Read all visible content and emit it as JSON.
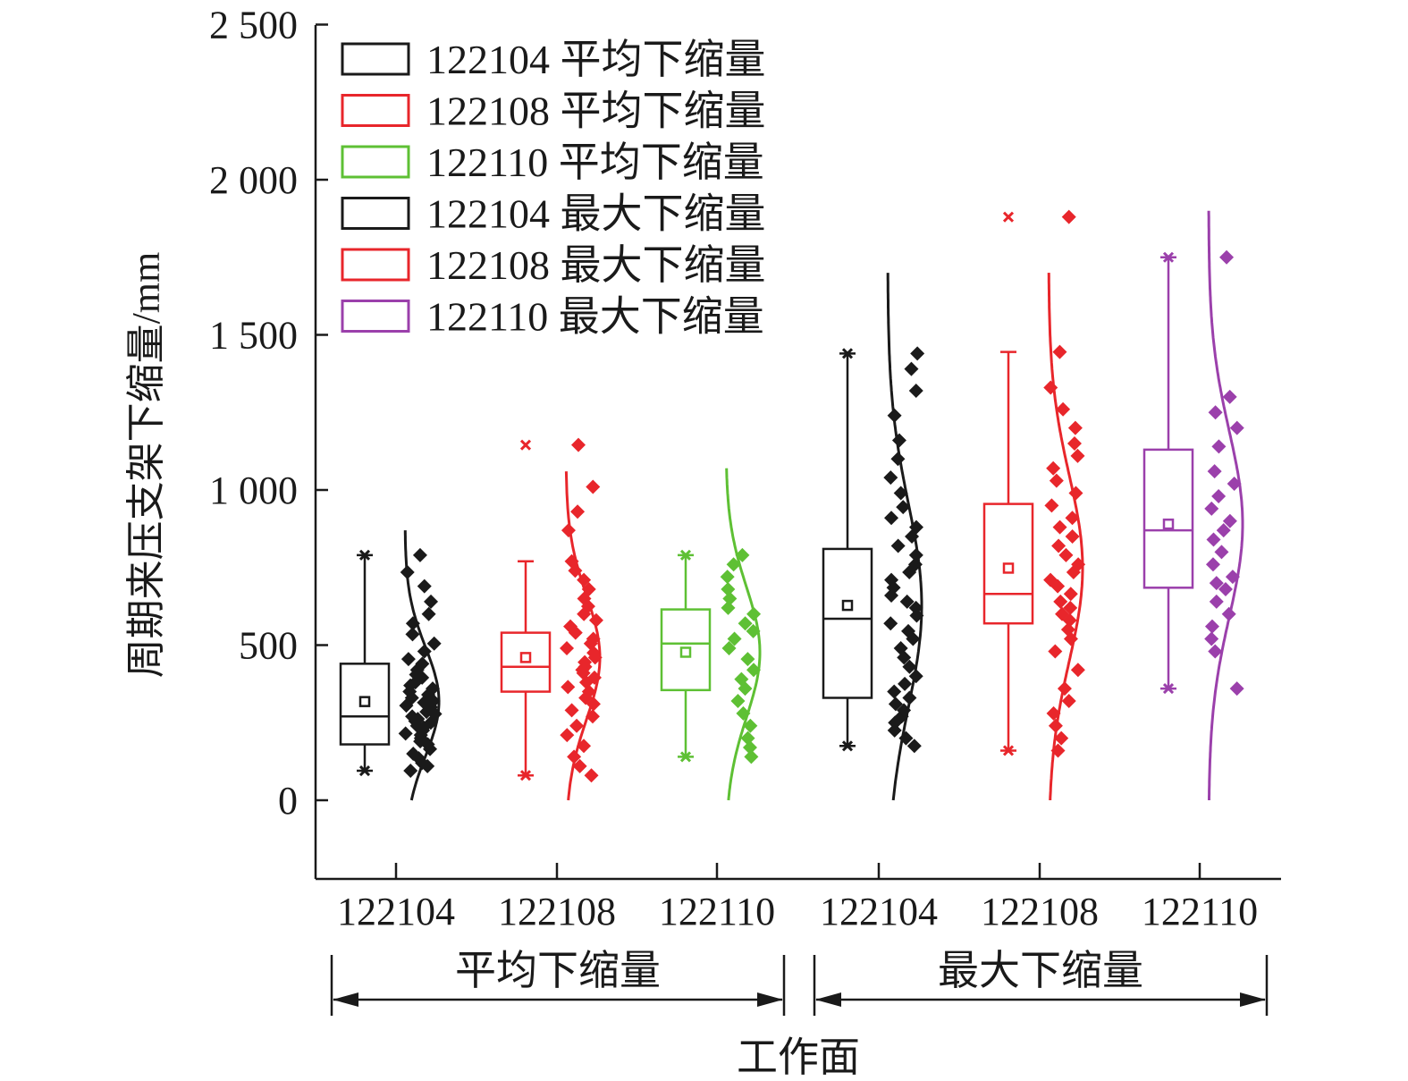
{
  "chart_data": {
    "type": "box",
    "ylabel": "周期来压支架下缩量/mm",
    "xlabel": "工作面",
    "ylim": [
      -250,
      2500
    ],
    "yticks": [
      0,
      500,
      1000,
      1500,
      2000,
      2500
    ],
    "ytick_labels": [
      "0",
      "500",
      "1 000",
      "1 500",
      "2 000",
      "2 500"
    ],
    "groups": [
      {
        "label": "平均下缩量",
        "span": [
          0,
          2
        ]
      },
      {
        "label": "最大下缩量",
        "span": [
          3,
          5
        ]
      }
    ],
    "legend_placement": "top-left",
    "series": [
      {
        "name": "122104 平均下缩量",
        "category": "122104",
        "color": "#1a1a1a",
        "box": {
          "q1": 180,
          "median": 270,
          "q3": 440,
          "mean": 318,
          "whisker_low": 95,
          "whisker_high": 790,
          "min": 95,
          "max": 790
        },
        "curve": {
          "mean": 318,
          "sd": 175,
          "top": 870,
          "bottom": 0
        },
        "points": [
          95,
          110,
          120,
          135,
          150,
          165,
          180,
          190,
          200,
          210,
          215,
          225,
          235,
          240,
          250,
          255,
          262,
          270,
          278,
          285,
          290,
          300,
          305,
          315,
          320,
          330,
          340,
          350,
          360,
          370,
          380,
          395,
          405,
          420,
          440,
          455,
          480,
          505,
          535,
          570,
          600,
          640,
          690,
          735,
          790
        ]
      },
      {
        "name": "122108 平均下缩量",
        "category": "122108",
        "color": "#e8262b",
        "box": {
          "q1": 350,
          "median": 430,
          "q3": 540,
          "mean": 460,
          "whisker_low": 80,
          "whisker_high": 770,
          "min": 80,
          "max": 1145
        },
        "curve": {
          "mean": 460,
          "sd": 200,
          "top": 1060,
          "bottom": 0
        },
        "points": [
          80,
          110,
          140,
          175,
          210,
          240,
          270,
          290,
          310,
          330,
          350,
          365,
          380,
          395,
          410,
          420,
          430,
          445,
          460,
          475,
          490,
          505,
          520,
          540,
          560,
          580,
          600,
          625,
          650,
          680,
          710,
          740,
          770,
          870,
          930,
          1010,
          1145
        ]
      },
      {
        "name": "122110 平均下缩量",
        "category": "122110",
        "color": "#5ec034",
        "box": {
          "q1": 355,
          "median": 505,
          "q3": 615,
          "mean": 477,
          "whisker_low": 140,
          "whisker_high": 790,
          "min": 140,
          "max": 790
        },
        "curve": {
          "mean": 477,
          "sd": 210,
          "top": 1070,
          "bottom": 0
        },
        "points": [
          140,
          170,
          200,
          240,
          280,
          320,
          360,
          390,
          420,
          455,
          490,
          520,
          545,
          570,
          600,
          620,
          650,
          680,
          720,
          760,
          790
        ]
      },
      {
        "name": "122104 最大下缩量",
        "category": "122104",
        "color": "#1a1a1a",
        "box": {
          "q1": 330,
          "median": 585,
          "q3": 810,
          "mean": 628,
          "whisker_low": 175,
          "whisker_high": 1440,
          "min": 175,
          "max": 1440
        },
        "curve": {
          "mean": 628,
          "sd": 330,
          "top": 1700,
          "bottom": 0
        },
        "points": [
          175,
          200,
          225,
          250,
          270,
          290,
          310,
          330,
          350,
          375,
          400,
          430,
          460,
          490,
          520,
          545,
          570,
          595,
          620,
          640,
          660,
          685,
          710,
          735,
          760,
          790,
          820,
          850,
          880,
          910,
          945,
          990,
          1040,
          1100,
          1160,
          1240,
          1320,
          1390,
          1440
        ]
      },
      {
        "name": "122108 最大下缩量",
        "category": "122108",
        "color": "#e8262b",
        "box": {
          "q1": 570,
          "median": 665,
          "q3": 955,
          "mean": 748,
          "whisker_low": 160,
          "whisker_high": 1445,
          "min": 160,
          "max": 1880
        },
        "curve": {
          "mean": 748,
          "sd": 300,
          "top": 1700,
          "bottom": 0
        },
        "points": [
          160,
          200,
          240,
          280,
          320,
          360,
          420,
          480,
          520,
          550,
          580,
          600,
          620,
          640,
          665,
          690,
          710,
          735,
          760,
          790,
          820,
          850,
          880,
          910,
          950,
          990,
          1030,
          1070,
          1110,
          1150,
          1200,
          1260,
          1330,
          1445,
          1880
        ]
      },
      {
        "name": "122110 最大下缩量",
        "category": "122110",
        "color": "#9b40ab",
        "box": {
          "q1": 685,
          "median": 870,
          "q3": 1130,
          "mean": 890,
          "whisker_low": 360,
          "whisker_high": 1750,
          "min": 360,
          "max": 1750
        },
        "curve": {
          "mean": 890,
          "sd": 300,
          "top": 1900,
          "bottom": 0
        },
        "points": [
          360,
          480,
          520,
          560,
          600,
          640,
          680,
          700,
          720,
          760,
          800,
          840,
          870,
          900,
          940,
          980,
          1020,
          1060,
          1140,
          1200,
          1250,
          1300,
          1750
        ]
      }
    ]
  }
}
